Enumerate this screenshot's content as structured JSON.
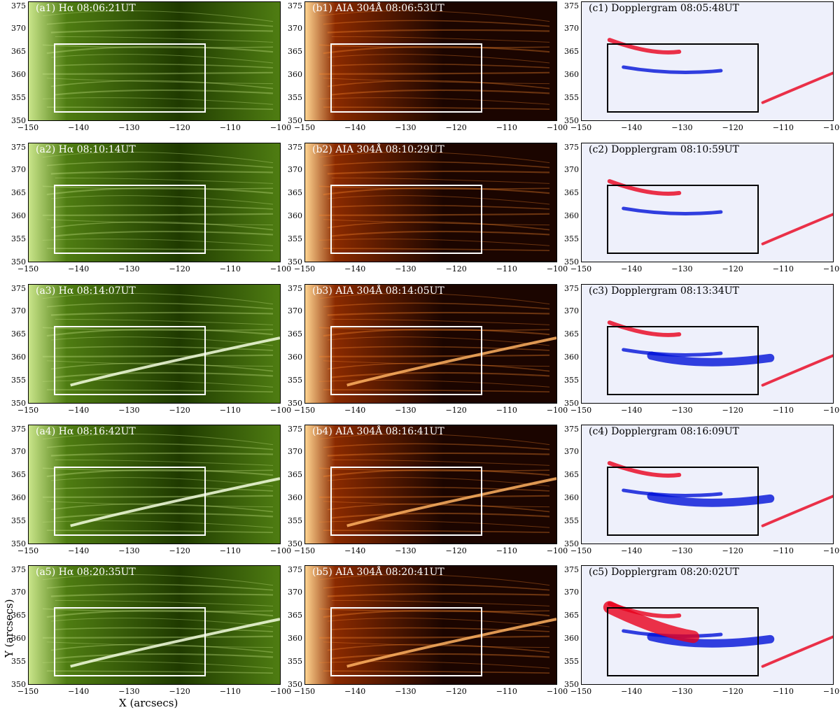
{
  "colors": {
    "halpha_dark": "#1f3a00",
    "halpha_mid": "#4f7d12",
    "halpha_bright": "#c9e58a",
    "aia_dark": "#1b0500",
    "aia_mid": "#8a2a00",
    "aia_bright": "#ffd490",
    "doppler_bg": "#eef0fb",
    "doppler_red": "#e8001c",
    "doppler_blue": "#0012d8"
  },
  "axes": {
    "xlabel": "X (arcsecs)",
    "ylabel": "Y (arcsecs)",
    "x_ticks": [
      "−150",
      "−140",
      "−130",
      "−120",
      "−110",
      "−100"
    ],
    "y_ticks": [
      "375",
      "370",
      "365",
      "360",
      "355",
      "350"
    ],
    "x_range": [
      -150,
      -100
    ],
    "y_range": [
      350,
      376
    ]
  },
  "panels": [
    {
      "id": "a1",
      "kind": "halpha",
      "title": "(a1) Hα 08:06:21UT"
    },
    {
      "id": "b1",
      "kind": "aia",
      "title": "(b1) AIA 304Å 08:06:53UT"
    },
    {
      "id": "c1",
      "kind": "doppler",
      "title": "(c1) Dopplergram 08:05:48UT"
    },
    {
      "id": "a2",
      "kind": "halpha",
      "title": "(a2) Hα 08:10:14UT"
    },
    {
      "id": "b2",
      "kind": "aia",
      "title": "(b2) AIA 304Å 08:10:29UT"
    },
    {
      "id": "c2",
      "kind": "doppler",
      "title": "(c2) Dopplergram 08:10:59UT"
    },
    {
      "id": "a3",
      "kind": "halpha",
      "title": "(a3) Hα 08:14:07UT"
    },
    {
      "id": "b3",
      "kind": "aia",
      "title": "(b3) AIA 304Å 08:14:05UT"
    },
    {
      "id": "c3",
      "kind": "doppler",
      "title": "(c3) Dopplergram 08:13:34UT"
    },
    {
      "id": "a4",
      "kind": "halpha",
      "title": "(a4) Hα 08:16:42UT"
    },
    {
      "id": "b4",
      "kind": "aia",
      "title": "(b4) AIA 304Å 08:16:41UT"
    },
    {
      "id": "c4",
      "kind": "doppler",
      "title": "(c4) Dopplergram 08:16:09UT"
    },
    {
      "id": "a5",
      "kind": "halpha",
      "title": "(a5) Hα 08:20:35UT"
    },
    {
      "id": "b5",
      "kind": "aia",
      "title": "(b5) AIA 304Å 08:20:41UT"
    },
    {
      "id": "c5",
      "kind": "doppler",
      "title": "(c5) Dopplergram 08:20:02UT"
    }
  ],
  "roi": {
    "x": [
      -145,
      -115
    ],
    "y": [
      352,
      367
    ]
  }
}
